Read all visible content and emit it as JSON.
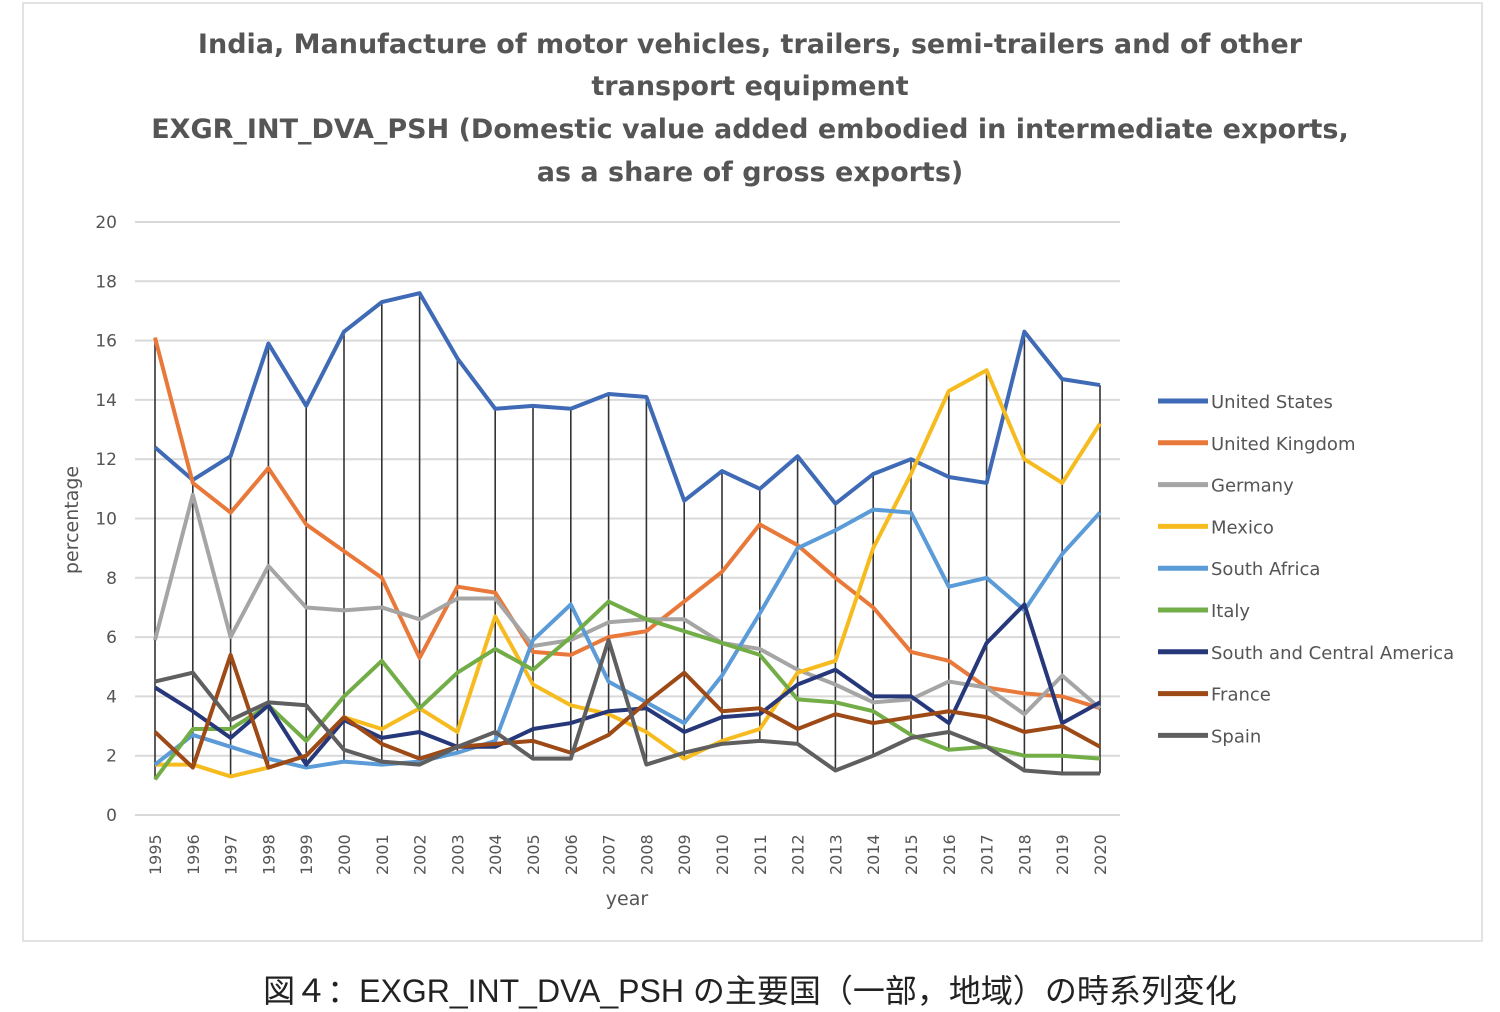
{
  "chart_data": {
    "type": "line",
    "title_lines": [
      "India, Manufacture of motor vehicles, trailers, semi-trailers and of other",
      "transport equipment",
      "EXGR_INT_DVA_PSH  (Domestic value added embodied in intermediate exports,",
      "as a share of gross exports)"
    ],
    "xlabel": "year",
    "ylabel": "percentage",
    "ylim": [
      0,
      20
    ],
    "yticks": [
      0,
      2,
      4,
      6,
      8,
      10,
      12,
      14,
      16,
      18,
      20
    ],
    "x": [
      1995,
      1996,
      1997,
      1998,
      1999,
      2000,
      2001,
      2002,
      2003,
      2004,
      2005,
      2006,
      2007,
      2008,
      2009,
      2010,
      2011,
      2012,
      2013,
      2014,
      2015,
      2016,
      2017,
      2018,
      2019,
      2020
    ],
    "legend": "right",
    "grid": true,
    "high_low_lines": true,
    "series": [
      {
        "name": "United States",
        "color": "#3f6ab5",
        "values": [
          12.4,
          11.3,
          12.1,
          15.9,
          13.8,
          16.3,
          17.3,
          17.6,
          15.4,
          13.7,
          13.8,
          13.7,
          14.2,
          14.1,
          10.6,
          11.6,
          11.0,
          12.1,
          10.5,
          11.5,
          12.0,
          11.4,
          11.2,
          16.3,
          14.7,
          14.5
        ]
      },
      {
        "name": "United Kingdom",
        "color": "#e9793a",
        "values": [
          16.1,
          11.2,
          10.2,
          11.7,
          9.8,
          8.9,
          8.0,
          5.3,
          7.7,
          7.5,
          5.5,
          5.4,
          6.0,
          6.2,
          7.2,
          8.2,
          9.8,
          9.1,
          8.0,
          7.0,
          5.5,
          5.2,
          4.3,
          4.1,
          4.0,
          3.6
        ]
      },
      {
        "name": "Germany",
        "color": "#a5a5a5",
        "values": [
          5.9,
          10.8,
          6.0,
          8.4,
          7.0,
          6.9,
          7.0,
          6.6,
          7.3,
          7.3,
          5.7,
          5.9,
          6.5,
          6.6,
          6.6,
          5.8,
          5.6,
          4.9,
          4.4,
          3.8,
          3.9,
          4.5,
          4.3,
          3.4,
          4.7,
          3.6
        ]
      },
      {
        "name": "Mexico",
        "color": "#f6bb1f",
        "values": [
          1.7,
          1.7,
          1.3,
          1.6,
          2.0,
          3.3,
          2.9,
          3.6,
          2.8,
          6.7,
          4.4,
          3.7,
          3.4,
          2.8,
          1.9,
          2.5,
          2.9,
          4.8,
          5.2,
          9.0,
          11.5,
          14.3,
          15.0,
          12.0,
          11.2,
          13.2
        ]
      },
      {
        "name": "South Africa",
        "color": "#5a9bd8",
        "values": [
          1.7,
          2.7,
          2.3,
          1.9,
          1.6,
          1.8,
          1.7,
          1.8,
          2.1,
          2.5,
          5.9,
          7.1,
          4.5,
          3.8,
          3.1,
          4.7,
          6.8,
          9.0,
          9.6,
          10.3,
          10.2,
          7.7,
          8.0,
          6.9,
          8.8,
          10.2
        ]
      },
      {
        "name": "Italy",
        "color": "#72ad47",
        "values": [
          1.2,
          2.9,
          2.9,
          3.7,
          2.5,
          4.0,
          5.2,
          3.6,
          4.8,
          5.6,
          4.9,
          6.0,
          7.2,
          6.6,
          6.2,
          5.8,
          5.4,
          3.9,
          3.8,
          3.5,
          2.7,
          2.2,
          2.3,
          2.0,
          2.0,
          1.9
        ]
      },
      {
        "name": "South and Central America",
        "color": "#27387a",
        "values": [
          4.3,
          3.5,
          2.6,
          3.7,
          1.7,
          3.2,
          2.6,
          2.8,
          2.3,
          2.3,
          2.9,
          3.1,
          3.5,
          3.6,
          2.8,
          3.3,
          3.4,
          4.4,
          4.9,
          4.0,
          4.0,
          3.1,
          5.8,
          7.1,
          3.1,
          3.8
        ]
      },
      {
        "name": "France",
        "color": "#9e4a17",
        "values": [
          2.8,
          1.6,
          5.4,
          1.6,
          2.0,
          3.3,
          2.4,
          1.9,
          2.3,
          2.4,
          2.5,
          2.1,
          2.7,
          3.8,
          4.8,
          3.5,
          3.6,
          2.9,
          3.4,
          3.1,
          3.3,
          3.5,
          3.3,
          2.8,
          3.0,
          2.3
        ]
      },
      {
        "name": "Spain",
        "color": "#5f5f5f",
        "values": [
          4.5,
          4.8,
          3.2,
          3.8,
          3.7,
          2.2,
          1.8,
          1.7,
          2.3,
          2.8,
          1.9,
          1.9,
          5.9,
          1.7,
          2.1,
          2.4,
          2.5,
          2.4,
          1.5,
          2.0,
          2.6,
          2.8,
          2.3,
          1.5,
          1.4,
          1.4
        ]
      }
    ]
  },
  "caption": "図４：EXGR_INT_DVA_PSH の主要国（一部，地域）の時系列変化"
}
